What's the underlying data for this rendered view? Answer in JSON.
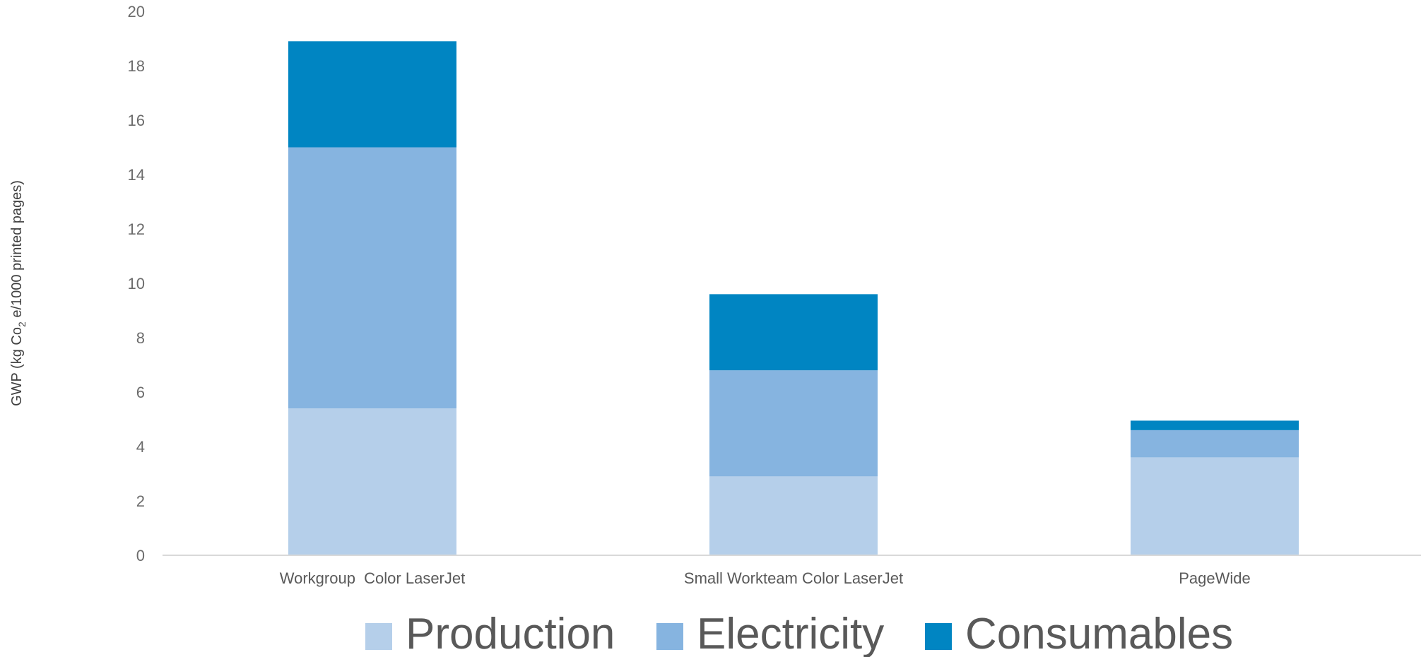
{
  "chart_data": {
    "type": "bar",
    "stacked": true,
    "categories": [
      "Workgroup  Color LaserJet",
      "Small Workteam Color LaserJet",
      "PageWide"
    ],
    "series": [
      {
        "name": "Production",
        "values": [
          5.4,
          2.9,
          3.6
        ],
        "color": "#b5cfea"
      },
      {
        "name": "Electricity",
        "values": [
          9.6,
          3.9,
          1.0
        ],
        "color": "#86b4e0"
      },
      {
        "name": "Consumables",
        "values": [
          3.9,
          2.8,
          0.35
        ],
        "color": "#0085c2"
      }
    ],
    "ylabel": "GWP (kg Co2 e/1000 printed pages)",
    "ylabel_parts": {
      "before": "GWP (kg Co",
      "sub": "2",
      "after": " e/1000 printed pages)"
    },
    "ylim": [
      0,
      20
    ],
    "yticks": [
      0,
      2,
      4,
      6,
      8,
      10,
      12,
      14,
      16,
      18,
      20
    ],
    "grid": false,
    "legend_position": "bottom"
  }
}
